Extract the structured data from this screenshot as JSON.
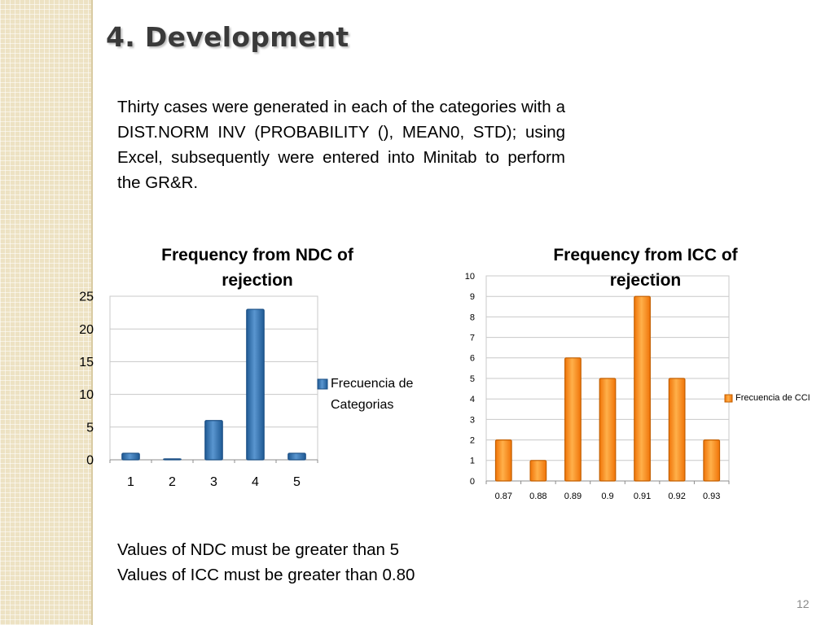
{
  "slide": {
    "title": "4. Development",
    "paragraph": "Thirty cases were generated in each of the categories with a DIST.NORM INV (PROBABILITY (), MEAN0, STD); using Excel, subsequently were entered into Minitab to perform the GR&R.",
    "note_ndc": "Values of NDC must be greater than 5",
    "note_icc": "Values of ICC must be greater than 0.80",
    "page_number": "12"
  },
  "chart_data": [
    {
      "type": "bar",
      "title": "Frequency from NDC of rejection",
      "categories": [
        "1",
        "2",
        "3",
        "4",
        "5"
      ],
      "series": [
        {
          "name": "Frecuencia de Categorias",
          "values": [
            1,
            0,
            6,
            23,
            1
          ]
        }
      ],
      "xlabel": "",
      "ylabel": "",
      "ylim": [
        0,
        25
      ],
      "yticks": [
        "0",
        "5",
        "10",
        "15",
        "20",
        "25"
      ],
      "grid": true,
      "legend": "right",
      "legend_lines": [
        "Frecuencia de",
        "Categorias"
      ],
      "color": "#2e6ca7"
    },
    {
      "type": "bar",
      "title": "Frequency from ICC of rejection",
      "categories": [
        "0.87",
        "0.88",
        "0.89",
        "0.9",
        "0.91",
        "0.92",
        "0.93"
      ],
      "series": [
        {
          "name": "Frecuencia de CCI",
          "values": [
            2,
            1,
            6,
            5,
            9,
            5,
            2
          ]
        }
      ],
      "xlabel": "",
      "ylabel": "",
      "ylim": [
        0,
        10
      ],
      "yticks": [
        "0",
        "1",
        "2",
        "3",
        "4",
        "5",
        "6",
        "7",
        "8",
        "9",
        "10"
      ],
      "grid": true,
      "legend": "right",
      "legend_lines": [
        "Frecuencia de CCI"
      ],
      "color": "#f5830f"
    }
  ]
}
